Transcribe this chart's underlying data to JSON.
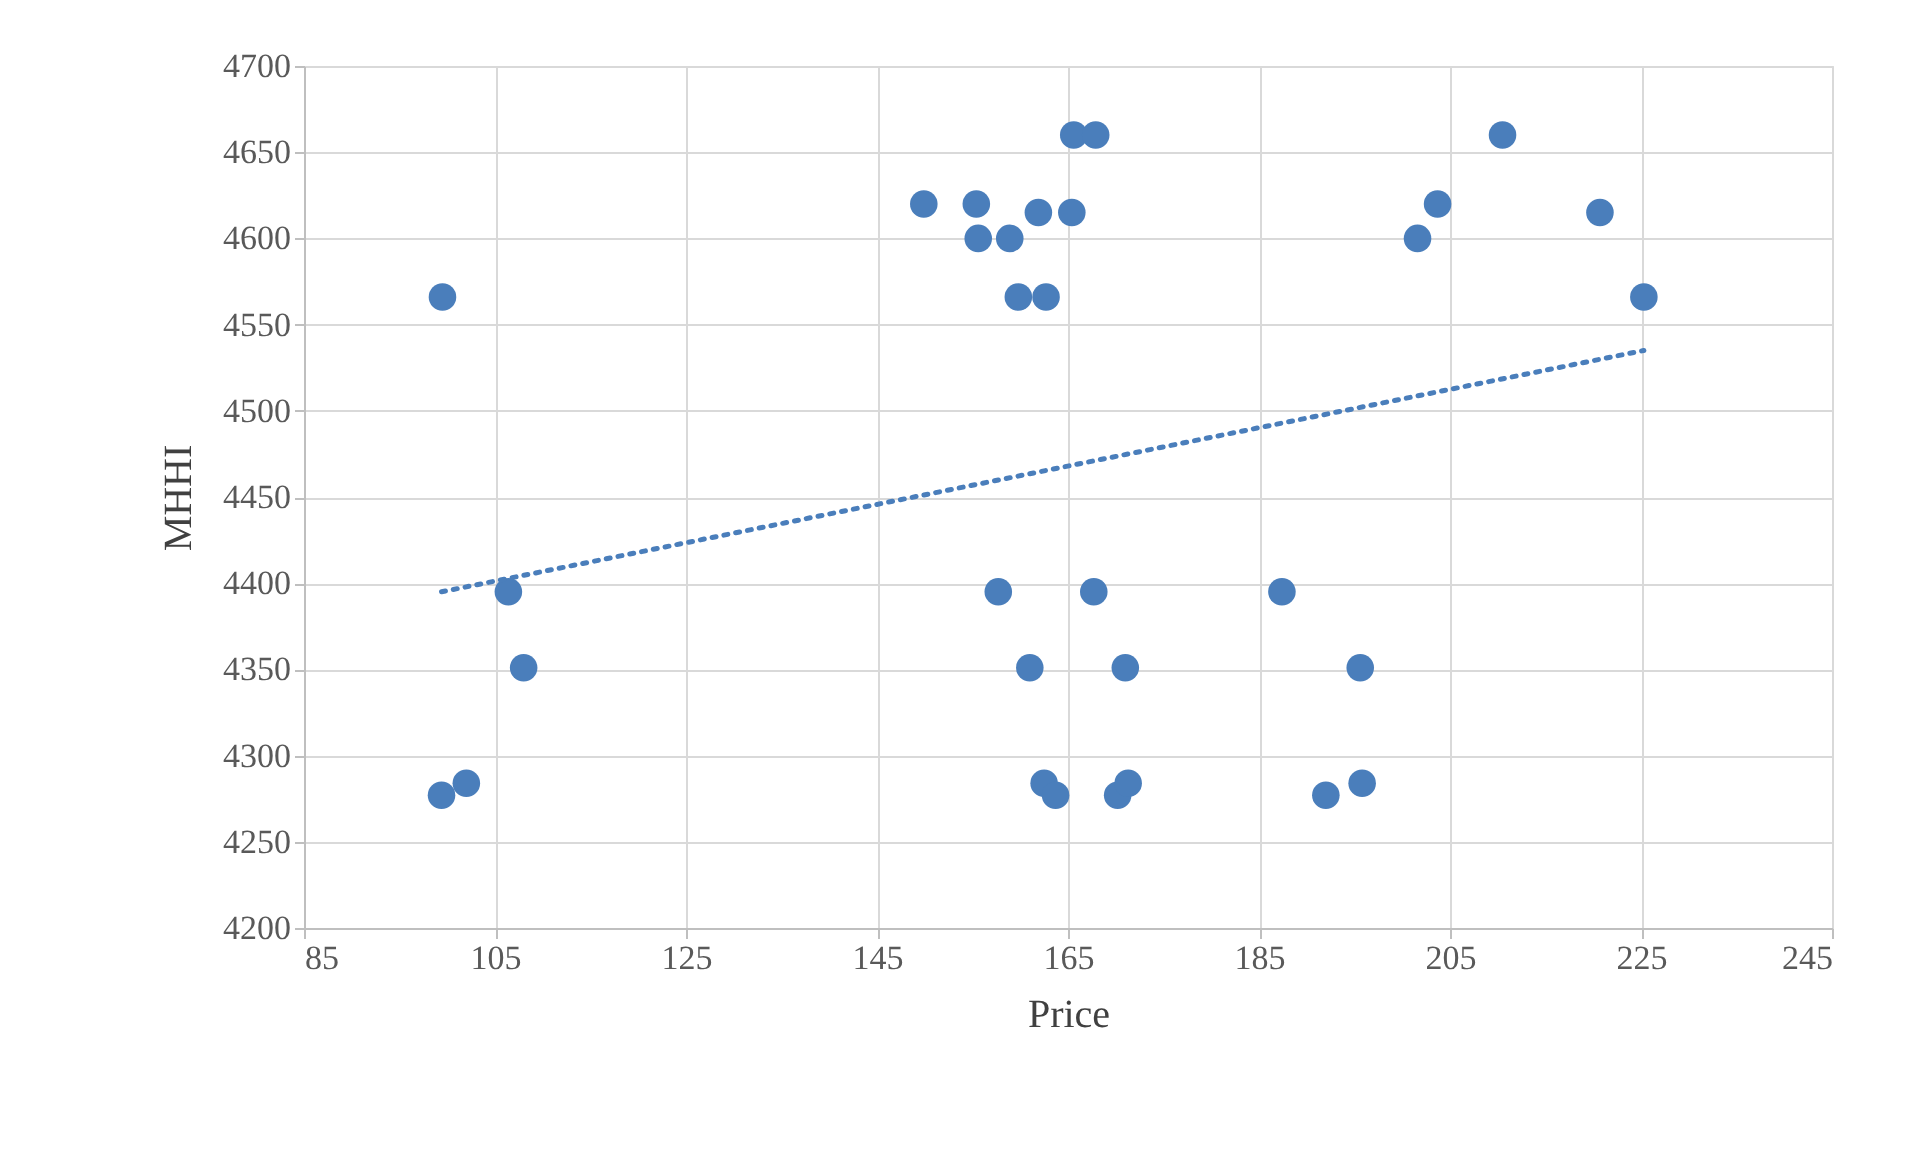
{
  "chart_data": {
    "type": "scatter",
    "xlabel": "Price",
    "ylabel": "MHHI",
    "xlim": [
      85,
      245
    ],
    "xticks": [
      85,
      105,
      125,
      145,
      165,
      185,
      205,
      225,
      245
    ],
    "ylim": [
      4200,
      4700
    ],
    "yticks": [
      4200,
      4250,
      4300,
      4350,
      4400,
      4450,
      4500,
      4550,
      4600,
      4650,
      4700
    ],
    "grid": true,
    "marker": "circle",
    "series": [
      {
        "color": "#4a7ebb",
        "x": [
          99.4,
          102,
          99.5,
          106.4,
          108,
          149.9,
          155.4,
          155.6,
          158.9,
          159.8,
          162.7,
          161.9,
          165.4,
          165.6,
          167.9,
          157.7,
          167.7,
          161,
          171,
          162.5,
          163.7,
          170.2,
          171.3,
          187.4,
          192,
          195.6,
          195.8,
          201.6,
          203.7,
          210.5,
          220.7,
          225.3
        ],
        "values": [
          4277,
          4284,
          4566,
          4395,
          4351,
          4620,
          4620,
          4600,
          4600,
          4566,
          4566,
          4615,
          4615,
          4660,
          4660,
          4395,
          4395,
          4351,
          4351,
          4284,
          4277,
          4277,
          4284,
          4395,
          4277,
          4351,
          4284,
          4600,
          4620,
          4660,
          4615,
          4566
        ]
      },
      {
        "type": "line",
        "color": "#4a7ebb",
        "line_style": "dotted",
        "marker": "none",
        "x": [
          99.4,
          225.3
        ],
        "values": [
          4395,
          4535
        ]
      }
    ]
  }
}
